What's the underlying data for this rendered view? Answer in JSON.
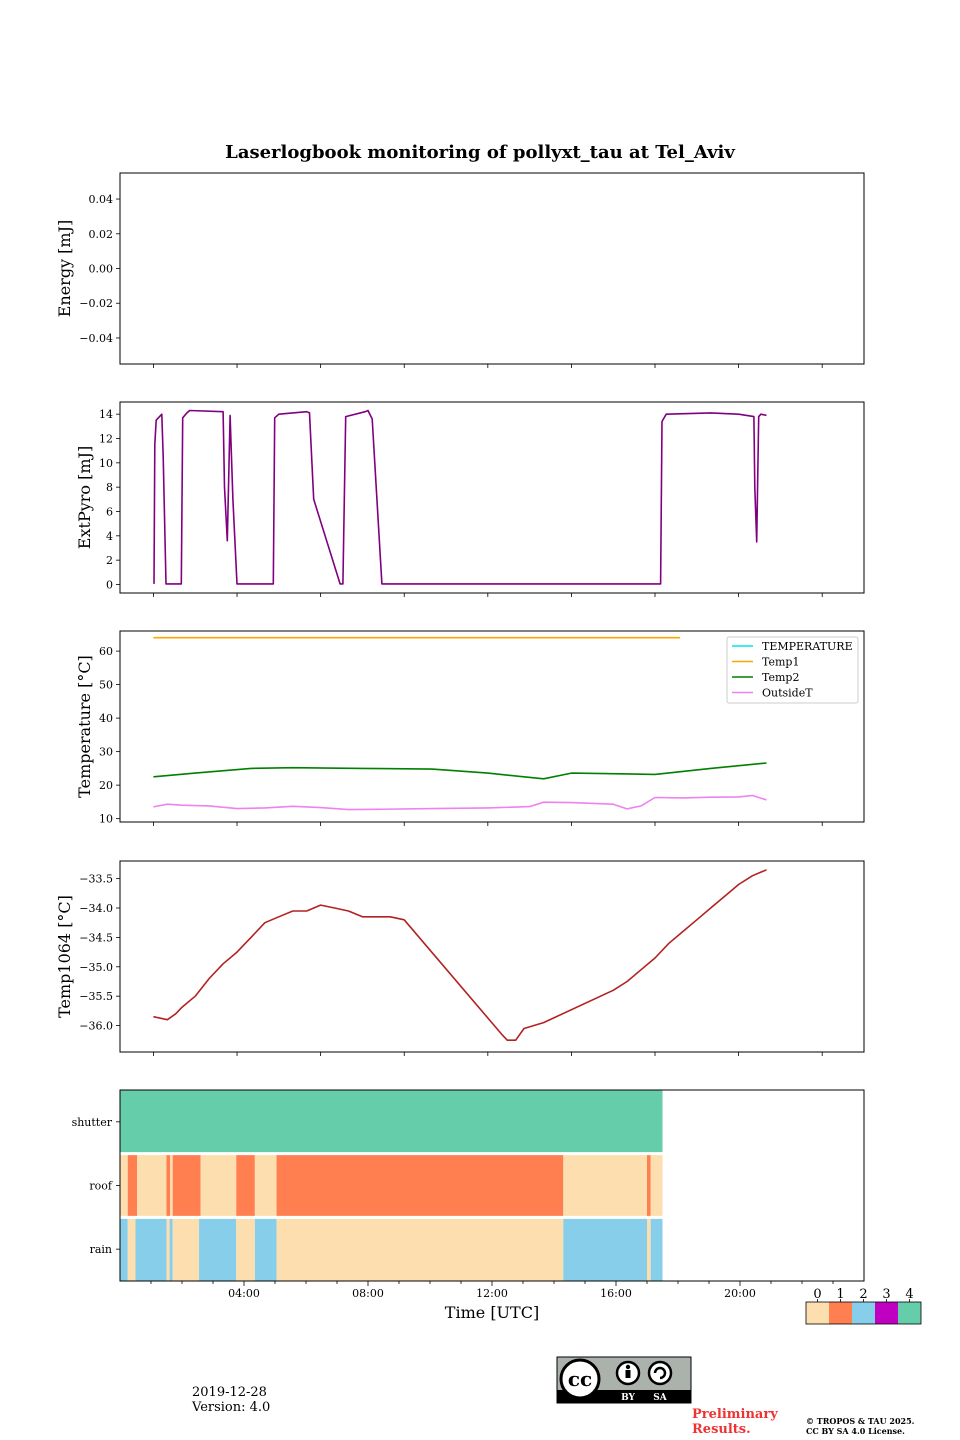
{
  "title": "Laserlogbook monitoring of pollyxt_tau at Tel_Aviv",
  "date_text": "2019-12-28",
  "version_text": "Version: 4.0",
  "preliminary_line1": "Preliminary",
  "preliminary_line2": "Results.",
  "copyright_line1": "© TROPOS & TAU 2025.",
  "copyright_line2": "CC BY SA 4.0 License.",
  "cc_badge": {
    "cc": "cc",
    "by": "BY",
    "sa": "SA"
  },
  "chart_data": [
    {
      "type": "line",
      "ylabel": "Energy [mJ]",
      "ylim": [
        -0.055,
        0.055
      ],
      "yticks": [
        0.04,
        0.02,
        0.0,
        -0.02,
        -0.04
      ],
      "ytick_labels": [
        "0.04",
        "0.02",
        "0.00",
        "−0.02",
        "−0.04"
      ],
      "series": []
    },
    {
      "type": "line",
      "ylabel": "ExtPyro [mJ]",
      "ylim": [
        -0.7,
        15
      ],
      "yticks": [
        0,
        2,
        4,
        6,
        8,
        10,
        12,
        14
      ],
      "ytick_labels": [
        "0",
        "2",
        "4",
        "6",
        "8",
        "10",
        "12",
        "14"
      ],
      "series": [
        {
          "color": "#800080",
          "x": [
            0.02,
            0.05,
            0.1,
            0.3,
            0.35,
            0.45,
            1.0,
            1.05,
            1.2,
            1.3,
            2.5,
            2.55,
            2.65,
            2.75,
            2.85,
            3.0,
            3.2,
            4.3,
            4.35,
            4.5,
            5.5,
            5.6,
            5.75,
            6.7,
            6.8,
            6.9,
            7.6,
            7.7,
            7.85,
            8.2,
            18.2,
            18.25,
            18.4,
            20.0,
            21.0,
            21.55,
            21.58,
            21.65,
            21.72,
            21.8,
            22.0
          ],
          "y": [
            0.05,
            11.5,
            13.5,
            14.0,
            10.5,
            0.05,
            0.05,
            13.7,
            14.1,
            14.3,
            14.2,
            8.0,
            3.6,
            13.9,
            7.0,
            0.05,
            0.05,
            0.05,
            13.7,
            14.0,
            14.2,
            14.1,
            7.0,
            0.05,
            0.05,
            13.8,
            14.2,
            14.3,
            13.6,
            0.05,
            0.05,
            13.4,
            14.0,
            14.1,
            14.0,
            13.8,
            8.0,
            3.5,
            13.8,
            14.0,
            13.9
          ]
        }
      ]
    },
    {
      "type": "line",
      "ylabel": "Temperature [°C]",
      "ylim": [
        9,
        66
      ],
      "yticks": [
        10,
        20,
        30,
        40,
        50,
        60
      ],
      "ytick_labels": [
        "10",
        "20",
        "30",
        "40",
        "50",
        "60"
      ],
      "legend_position": "top-right",
      "series": [
        {
          "name": "TEMPERATURE",
          "color": "#00e5e5",
          "x": [],
          "y": []
        },
        {
          "name": "Temp1",
          "color": "#ffa500",
          "x": [
            0.0,
            18.9
          ],
          "y": [
            64.0,
            64.0
          ]
        },
        {
          "name": "Temp2",
          "color": "#008000",
          "x": [
            0.0,
            1.5,
            3.5,
            5.0,
            7.5,
            10.0,
            12.0,
            14.0,
            15.0,
            18.0,
            20.0,
            22.0
          ],
          "y": [
            22.5,
            23.6,
            25.0,
            25.2,
            25.0,
            24.8,
            23.6,
            21.9,
            23.6,
            23.2,
            25.0,
            26.6
          ]
        },
        {
          "name": "OutsideT",
          "color": "#ee82ee",
          "x": [
            0.0,
            0.5,
            1.0,
            2.0,
            3.0,
            4.0,
            5.0,
            6.0,
            7.0,
            8.0,
            10.0,
            12.0,
            13.5,
            14.0,
            15.0,
            16.5,
            17.0,
            17.5,
            18.0,
            19.0,
            20.0,
            21.0,
            21.5,
            22.0
          ],
          "y": [
            13.5,
            14.3,
            14.0,
            13.8,
            13.0,
            13.2,
            13.7,
            13.3,
            12.7,
            12.8,
            13.0,
            13.2,
            13.6,
            14.9,
            14.8,
            14.3,
            12.9,
            13.8,
            16.3,
            16.2,
            16.4,
            16.5,
            16.9,
            15.6
          ]
        }
      ]
    },
    {
      "type": "line",
      "ylabel": "Temp1064 [°C]",
      "ylim": [
        -36.45,
        -33.2
      ],
      "yticks": [
        -33.5,
        -34.0,
        -34.5,
        -35.0,
        -35.5,
        -36.0
      ],
      "ytick_labels": [
        "−33.5",
        "−34.0",
        "−34.5",
        "−35.0",
        "−35.5",
        "−36.0"
      ],
      "series": [
        {
          "color": "#b22222",
          "x": [
            0.0,
            0.5,
            0.8,
            1.0,
            1.5,
            2.0,
            2.5,
            3.0,
            3.5,
            4.0,
            4.5,
            5.0,
            5.5,
            6.0,
            6.5,
            7.0,
            7.5,
            8.0,
            8.5,
            9.0,
            12.5,
            12.7,
            13.0,
            13.3,
            14.0,
            16.5,
            17.0,
            17.5,
            18.0,
            18.5,
            19.0,
            19.5,
            20.0,
            20.5,
            21.0,
            21.5,
            22.0
          ],
          "y": [
            -35.85,
            -35.9,
            -35.8,
            -35.7,
            -35.5,
            -35.2,
            -34.95,
            -34.75,
            -34.5,
            -34.25,
            -34.15,
            -34.05,
            -34.05,
            -33.95,
            -34.0,
            -34.05,
            -34.15,
            -34.15,
            -34.15,
            -34.2,
            -36.15,
            -36.25,
            -36.25,
            -36.05,
            -35.95,
            -35.4,
            -35.25,
            -35.05,
            -34.85,
            -34.6,
            -34.4,
            -34.2,
            -34.0,
            -33.8,
            -33.6,
            -33.45,
            -33.35
          ]
        }
      ]
    },
    {
      "type": "heatmap",
      "xlabel": "Time [UTC]",
      "xticks": [
        4,
        8,
        12,
        16,
        20
      ],
      "xtick_labels": [
        "04:00",
        "08:00",
        "12:00",
        "16:00",
        "20:00"
      ],
      "rows": [
        "shutter",
        "roof",
        "rain"
      ],
      "colorbar": {
        "labels": [
          "0",
          "1",
          "2",
          "3",
          "4"
        ],
        "colors": [
          "#fddeae",
          "#ff7f50",
          "#87ceeb",
          "#c000c0",
          "#66cdaa"
        ]
      },
      "segments": {
        "shutter": [
          {
            "start": 0.0,
            "end": 17.5,
            "value": 4
          }
        ],
        "roof": [
          {
            "start": 0.0,
            "end": 0.25,
            "value": 0
          },
          {
            "start": 0.25,
            "end": 0.55,
            "value": 1
          },
          {
            "start": 0.55,
            "end": 1.5,
            "value": 0
          },
          {
            "start": 1.5,
            "end": 1.62,
            "value": 1
          },
          {
            "start": 1.62,
            "end": 1.7,
            "value": 0
          },
          {
            "start": 1.7,
            "end": 2.6,
            "value": 1
          },
          {
            "start": 2.6,
            "end": 3.75,
            "value": 0
          },
          {
            "start": 3.75,
            "end": 4.35,
            "value": 1
          },
          {
            "start": 4.35,
            "end": 5.05,
            "value": 0
          },
          {
            "start": 5.05,
            "end": 14.3,
            "value": 1
          },
          {
            "start": 14.3,
            "end": 17.0,
            "value": 0
          },
          {
            "start": 17.0,
            "end": 17.12,
            "value": 1
          },
          {
            "start": 17.12,
            "end": 17.5,
            "value": 0
          }
        ],
        "rain": [
          {
            "start": 0.0,
            "end": 0.25,
            "value": 2
          },
          {
            "start": 0.25,
            "end": 0.5,
            "value": 0
          },
          {
            "start": 0.5,
            "end": 1.5,
            "value": 2
          },
          {
            "start": 1.5,
            "end": 1.6,
            "value": 0
          },
          {
            "start": 1.6,
            "end": 1.7,
            "value": 2
          },
          {
            "start": 1.7,
            "end": 2.55,
            "value": 0
          },
          {
            "start": 2.55,
            "end": 3.75,
            "value": 2
          },
          {
            "start": 3.75,
            "end": 4.35,
            "value": 0
          },
          {
            "start": 4.35,
            "end": 5.05,
            "value": 2
          },
          {
            "start": 5.05,
            "end": 14.3,
            "value": 0
          },
          {
            "start": 14.3,
            "end": 17.0,
            "value": 2
          },
          {
            "start": 17.0,
            "end": 17.12,
            "value": 0
          },
          {
            "start": 17.12,
            "end": 17.5,
            "value": 2
          }
        ]
      }
    }
  ]
}
